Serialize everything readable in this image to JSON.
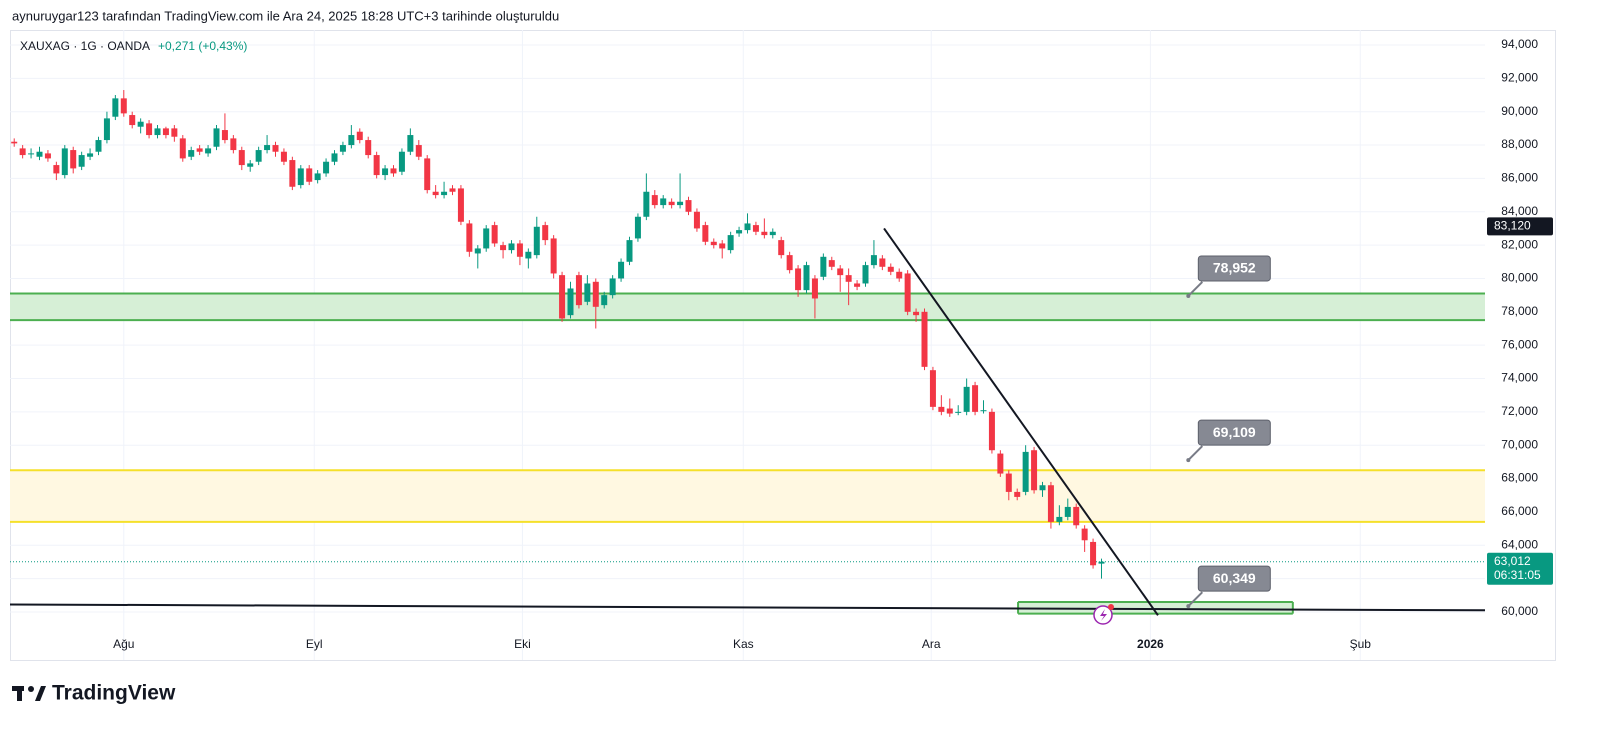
{
  "header": "aynuruygar123 tarafından TradingView.com ile Ara 24, 2025 18:28 UTC+3 tarihinde oluşturuldu",
  "brand": "TradingView",
  "chart_data": {
    "type": "candlestick",
    "symbol": "XAUXAG · 1G · OANDA",
    "change": "+0,271 (+0,43%)",
    "up_color": "#089981",
    "down_color": "#f23645",
    "grid": true,
    "xlim": [
      -0.5,
      174.5
    ],
    "xticks": [
      {
        "value": 13.0,
        "label": "Ağu"
      },
      {
        "value": 35.6,
        "label": "Eyl"
      },
      {
        "value": 60.3,
        "label": "Eki"
      },
      {
        "value": 86.5,
        "label": "Kas"
      },
      {
        "value": 108.8,
        "label": "Ara"
      },
      {
        "value": 134.8,
        "label": "2026"
      },
      {
        "value": 159.7,
        "label": "Şub"
      }
    ],
    "ylim": [
      57120,
      94900
    ],
    "yticks": [
      {
        "value": 60000,
        "label": "60,000"
      },
      {
        "value": 62000,
        "label": "62,000"
      },
      {
        "value": 64000,
        "label": "64,000"
      },
      {
        "value": 66000,
        "label": "66,000"
      },
      {
        "value": 68000,
        "label": "68,000"
      },
      {
        "value": 70000,
        "label": "70,000"
      },
      {
        "value": 72000,
        "label": "72,000"
      },
      {
        "value": 74000,
        "label": "74,000"
      },
      {
        "value": 76000,
        "label": "76,000"
      },
      {
        "value": 78000,
        "label": "78,000"
      },
      {
        "value": 80000,
        "label": "80,000"
      },
      {
        "value": 82000,
        "label": "82,000"
      },
      {
        "value": 84000,
        "label": "84,000"
      },
      {
        "value": 86000,
        "label": "86,000"
      },
      {
        "value": 88000,
        "label": "88,000"
      },
      {
        "value": 90000,
        "label": "90,000"
      },
      {
        "value": 92000,
        "label": "92,000"
      },
      {
        "value": 94000,
        "label": "94,000"
      }
    ],
    "open": [
      88200,
      87800,
      87500,
      87300,
      87500,
      86800,
      86200,
      87700,
      86700,
      87300,
      87600,
      88300,
      89700,
      90800,
      89800,
      89100,
      89300,
      88600,
      89000,
      89000,
      88400,
      87300,
      87800,
      87500,
      87900,
      88900,
      88400,
      87700,
      86700,
      87000,
      87700,
      88000,
      87600,
      87100,
      85600,
      86600,
      85900,
      86300,
      87000,
      87600,
      88000,
      88800,
      88300,
      87400,
      86200,
      86600,
      86400,
      87600,
      88000,
      87200,
      85200,
      85000,
      85400,
      85400,
      83300,
      81500,
      81800,
      83200,
      82000,
      81700,
      82100,
      81200,
      81400,
      83200,
      82400,
      80200,
      77800,
      80200,
      78600,
      79800,
      78400,
      79000,
      80000,
      81000,
      82400,
      83700,
      85000,
      84400,
      84600,
      84400,
      84700,
      84000,
      83200,
      82200,
      82100,
      81700,
      82700,
      82900,
      83200,
      82800,
      82600,
      82300,
      81400,
      80600,
      79300,
      80000,
      80100,
      81100,
      80600,
      80200,
      79700,
      79700,
      80800,
      81200,
      80700,
      80400,
      80300,
      78000,
      78000,
      74500,
      72300,
      72200,
      72000,
      72000,
      73600,
      72100,
      72000,
      69500,
      68300,
      67200,
      67200,
      69700,
      67300,
      67600,
      65400,
      65700,
      66300,
      65000,
      64200,
      62900
    ],
    "high": [
      88400,
      88000,
      87800,
      87900,
      87700,
      87000,
      88000,
      87900,
      87600,
      87800,
      88500,
      90000,
      91000,
      91300,
      90000,
      89600,
      89500,
      89200,
      89100,
      89200,
      88600,
      87900,
      88000,
      88000,
      89200,
      89900,
      88600,
      87900,
      87100,
      87900,
      88600,
      88200,
      87800,
      87300,
      86800,
      86800,
      86500,
      87200,
      87700,
      88200,
      89200,
      89000,
      88500,
      87600,
      86800,
      86800,
      87800,
      89000,
      88300,
      87400,
      85600,
      85800,
      85600,
      85600,
      83500,
      82000,
      83200,
      83400,
      82200,
      82300,
      82300,
      81800,
      83700,
      83400,
      82600,
      80400,
      79800,
      80400,
      80200,
      80000,
      79200,
      80200,
      81200,
      82500,
      83900,
      86300,
      85300,
      85000,
      84800,
      86300,
      84900,
      84200,
      83400,
      82400,
      82300,
      82800,
      83100,
      83900,
      83400,
      83600,
      83000,
      82500,
      81600,
      80800,
      81000,
      80200,
      81500,
      81300,
      80800,
      80600,
      79900,
      81000,
      82300,
      81400,
      80900,
      80600,
      80500,
      78200,
      78200,
      74700,
      73000,
      72800,
      72400,
      74000,
      73800,
      72700,
      72200,
      69700,
      68500,
      67400,
      70000,
      69900,
      67800,
      67800,
      66400,
      66800,
      66500,
      65200,
      64400,
      63200
    ],
    "low": [
      87900,
      87200,
      87200,
      87100,
      87000,
      85900,
      86000,
      86300,
      86500,
      87100,
      87400,
      88100,
      89500,
      89700,
      89000,
      88700,
      88400,
      88400,
      88400,
      88200,
      87000,
      87100,
      87400,
      87300,
      87700,
      88100,
      87500,
      86500,
      86400,
      86800,
      87500,
      87300,
      86800,
      85300,
      85400,
      85600,
      85700,
      86100,
      86800,
      87400,
      87800,
      88100,
      87200,
      86000,
      85900,
      86100,
      86200,
      87400,
      87100,
      85100,
      84800,
      84800,
      85000,
      83200,
      81300,
      80600,
      81600,
      81900,
      81200,
      81500,
      80800,
      80600,
      81200,
      82000,
      80000,
      77400,
      77600,
      78200,
      78400,
      77000,
      78200,
      78800,
      79800,
      80800,
      82200,
      83500,
      84200,
      84200,
      84200,
      84200,
      83800,
      82800,
      82000,
      81800,
      81200,
      81500,
      82500,
      82700,
      82600,
      82400,
      82400,
      81200,
      80300,
      78900,
      79100,
      77600,
      79900,
      80500,
      79200,
      78400,
      79300,
      79500,
      80600,
      80500,
      80200,
      79800,
      77800,
      77400,
      74500,
      72100,
      71800,
      71700,
      71800,
      71800,
      71800,
      71900,
      69500,
      68100,
      66700,
      66700,
      67000,
      67100,
      66900,
      65000,
      65200,
      65500,
      65000,
      63600,
      62600,
      62000
    ],
    "close": [
      88100,
      87400,
      87500,
      87600,
      87200,
      86300,
      87800,
      86600,
      87400,
      87500,
      88300,
      89600,
      90800,
      89900,
      89200,
      89400,
      88600,
      89000,
      88600,
      88500,
      87200,
      87700,
      87600,
      87800,
      89000,
      88300,
      87700,
      86800,
      86900,
      87700,
      88000,
      87600,
      87000,
      85500,
      86600,
      85800,
      86300,
      87000,
      87500,
      88000,
      88600,
      88300,
      87400,
      86200,
      86600,
      86300,
      87600,
      88600,
      87300,
      85300,
      85000,
      85200,
      85200,
      83400,
      81600,
      81800,
      83000,
      82100,
      81700,
      82100,
      81300,
      81600,
      83100,
      82300,
      80300,
      77600,
      79400,
      78400,
      79700,
      78300,
      79000,
      80000,
      81000,
      82300,
      83700,
      85200,
      84400,
      84800,
      84400,
      84600,
      84000,
      83000,
      82200,
      82000,
      81800,
      82600,
      82900,
      83300,
      82800,
      82600,
      82800,
      81400,
      80500,
      79300,
      80800,
      78800,
      81300,
      80700,
      80200,
      79800,
      79500,
      80800,
      81400,
      80700,
      80400,
      80000,
      78000,
      77800,
      74700,
      72300,
      72000,
      71900,
      72000,
      73500,
      72000,
      72100,
      69700,
      68300,
      67200,
      66900,
      69600,
      67300,
      67600,
      65400,
      65700,
      66300,
      65200,
      64300,
      62800,
      63012
    ],
    "zones": [
      {
        "bottom": 77500,
        "top": 79100,
        "x": [
          -0.5,
          174.5
        ],
        "fill": "#d6efd6",
        "stroke": "#4caf50"
      },
      {
        "bottom": 65400,
        "top": 68500,
        "x": [
          -0.5,
          174.5
        ],
        "fill": "#fff8e1",
        "stroke": "#f5e02a"
      },
      {
        "bottom": 59900,
        "top": 60600,
        "x": [
          119.1,
          151.7
        ],
        "fill": "#d6efd6",
        "stroke": "#4caf50"
      }
    ],
    "trend_lines": [
      {
        "x": [
          103.2,
          135.7
        ],
        "y": [
          83000,
          59800
        ],
        "color": "#131722"
      },
      {
        "x": [
          -0.5,
          174.5
        ],
        "y": [
          60450,
          60100
        ],
        "color": "#131722"
      }
    ],
    "callouts": [
      {
        "value": 78952,
        "label": "78,952",
        "x": 139.3
      },
      {
        "value": 69109,
        "label": "69,109",
        "x": 139.3
      },
      {
        "value": 60349,
        "label": "60,349",
        "x": 139.3
      }
    ],
    "price_tags": [
      {
        "value": 83120,
        "label": "83,120",
        "color": "#131722"
      },
      {
        "value": 63012,
        "label": "63,012",
        "countdown": "06:31:05",
        "color": "#089981"
      }
    ]
  }
}
